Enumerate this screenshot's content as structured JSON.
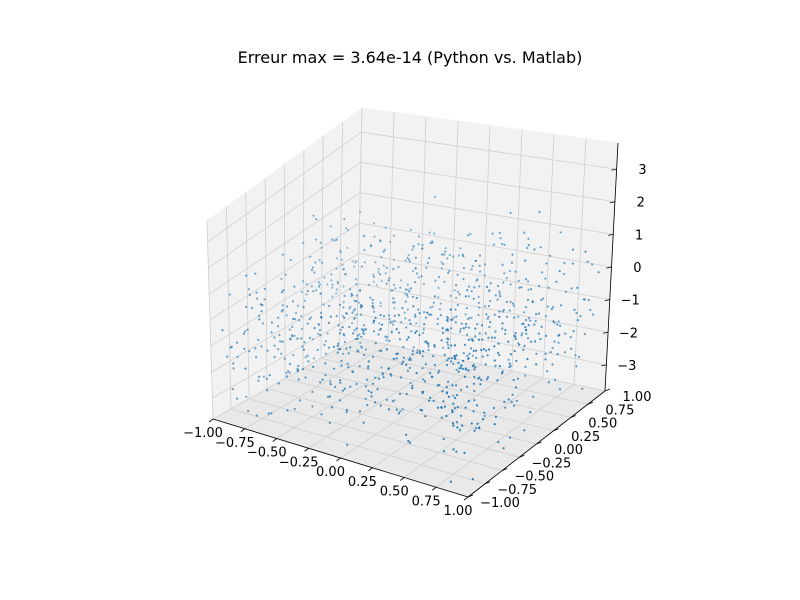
{
  "chart_data": {
    "type": "scatter",
    "title": "Erreur max = 3.64e-14 (Python vs. Matlab)",
    "projection": "3d",
    "grid": true,
    "marker_color": "#1f77b4",
    "xlim": [
      -1.0,
      1.0
    ],
    "ylim": [
      -1.0,
      1.0
    ],
    "zlim": [
      -3.8,
      3.8
    ],
    "x_ticks": [
      "−1.00",
      "−0.75",
      "−0.50",
      "−0.25",
      "0.00",
      "0.25",
      "0.50",
      "0.75",
      "1.00"
    ],
    "y_ticks": [
      "−1.00",
      "−0.75",
      "−0.50",
      "−0.25",
      "0.00",
      "0.25",
      "0.50",
      "0.75",
      "1.00"
    ],
    "z_ticks": [
      "−3",
      "−2",
      "−1",
      "0",
      "1",
      "2",
      "3"
    ],
    "points": {
      "count": 1000,
      "x_distribution": "uniform",
      "x_range": [
        -1,
        1
      ],
      "y_distribution": "uniform",
      "y_range": [
        -1,
        1
      ],
      "z_distribution": "normal",
      "z_mean": -1.0,
      "z_std": 1.1
    }
  }
}
